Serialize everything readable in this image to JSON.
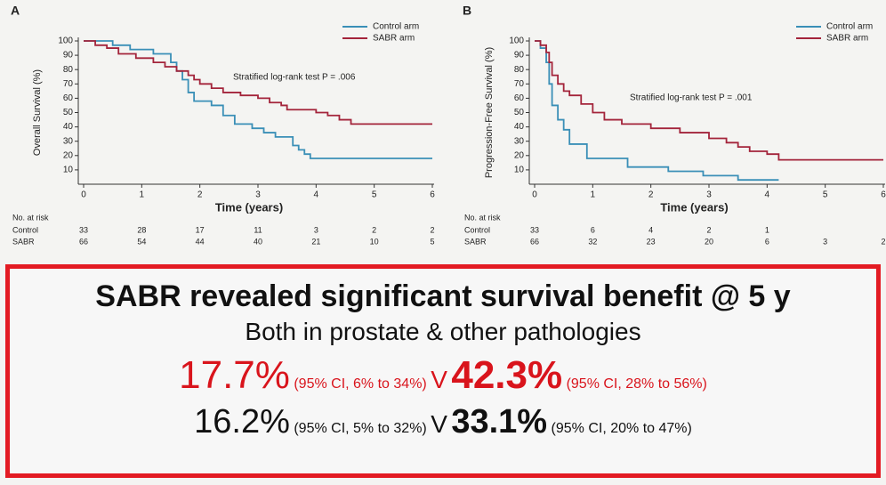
{
  "chart_data": [
    {
      "type": "line",
      "step": true,
      "panel_label": "A",
      "y_label": "Overall Survival (%)",
      "x_label": "Time (years)",
      "annotation": "Stratified log-rank test P = .006",
      "xlim": [
        0,
        6
      ],
      "xticks": [
        0,
        1,
        2,
        3,
        4,
        5,
        6
      ],
      "ylim": [
        0,
        100
      ],
      "yticks": [
        10,
        20,
        30,
        40,
        50,
        60,
        70,
        80,
        90,
        100
      ],
      "series": [
        {
          "name": "Control arm",
          "color": "#3a8fb7",
          "x": [
            0,
            0.5,
            0.8,
            1.2,
            1.5,
            1.6,
            1.7,
            1.8,
            1.9,
            2.2,
            2.4,
            2.6,
            2.9,
            3.1,
            3.3,
            3.6,
            3.7,
            3.8,
            3.9,
            6
          ],
          "values": [
            100,
            97,
            94,
            91,
            85,
            79,
            73,
            64,
            58,
            55,
            48,
            42,
            39,
            36,
            33,
            27,
            24,
            21,
            18,
            18
          ]
        },
        {
          "name": "SABR arm",
          "color": "#a3243b",
          "x": [
            0,
            0.2,
            0.4,
            0.6,
            0.9,
            1.2,
            1.4,
            1.6,
            1.8,
            1.9,
            2.0,
            2.2,
            2.4,
            2.7,
            3.0,
            3.2,
            3.4,
            3.5,
            4.0,
            4.2,
            4.4,
            4.6,
            6
          ],
          "values": [
            100,
            97,
            95,
            91,
            88,
            85,
            82,
            79,
            76,
            73,
            70,
            67,
            64,
            62,
            60,
            57,
            55,
            52,
            50,
            48,
            45,
            42,
            42
          ]
        }
      ],
      "risk_table": {
        "title": "No. at risk",
        "rows": [
          {
            "name": "Control",
            "values": [
              33,
              28,
              17,
              11,
              3,
              2,
              2
            ]
          },
          {
            "name": "SABR",
            "values": [
              66,
              54,
              44,
              40,
              21,
              10,
              5
            ]
          }
        ]
      }
    },
    {
      "type": "line",
      "step": true,
      "panel_label": "B",
      "y_label": "Progression-Free Survival (%)",
      "x_label": "Time (years)",
      "annotation": "Stratified log-rank test P = .001",
      "xlim": [
        0,
        6
      ],
      "xticks": [
        0,
        1,
        2,
        3,
        4,
        5,
        6
      ],
      "ylim": [
        0,
        100
      ],
      "yticks": [
        10,
        20,
        30,
        40,
        50,
        60,
        70,
        80,
        90,
        100
      ],
      "series": [
        {
          "name": "Control arm",
          "color": "#3a8fb7",
          "x": [
            0,
            0.1,
            0.2,
            0.25,
            0.3,
            0.4,
            0.5,
            0.6,
            0.9,
            1.6,
            2.3,
            2.9,
            3.5,
            4.2
          ],
          "values": [
            100,
            95,
            85,
            70,
            55,
            45,
            38,
            28,
            18,
            12,
            9,
            6,
            3,
            3
          ]
        },
        {
          "name": "SABR arm",
          "color": "#a3243b",
          "x": [
            0,
            0.1,
            0.2,
            0.25,
            0.3,
            0.4,
            0.5,
            0.6,
            0.8,
            1.0,
            1.2,
            1.5,
            2.0,
            2.5,
            3.0,
            3.3,
            3.5,
            3.7,
            4.0,
            4.2,
            6
          ],
          "values": [
            100,
            97,
            92,
            85,
            76,
            70,
            65,
            62,
            56,
            50,
            45,
            42,
            39,
            36,
            32,
            29,
            26,
            23,
            21,
            17,
            17
          ]
        }
      ],
      "risk_table": {
        "title": "No. at risk",
        "rows": [
          {
            "name": "Control",
            "values": [
              33,
              6,
              4,
              2,
              1
            ]
          },
          {
            "name": "SABR",
            "values": [
              66,
              32,
              23,
              20,
              6,
              3,
              2
            ]
          }
        ]
      }
    }
  ],
  "summary": {
    "headline": "SABR revealed significant survival benefit @ 5 y",
    "subheadline": "Both in prostate & other pathologies",
    "lines": [
      [
        "17.7%",
        "(95% CI, 6% to 34%)",
        "V",
        "42.3%",
        "(95% CI, 28% to 56%)"
      ],
      [
        "16.2%",
        "(95% CI, 5% to 32%)",
        "V",
        "33.1%",
        "(95% CI, 20% to 47%)"
      ]
    ]
  }
}
